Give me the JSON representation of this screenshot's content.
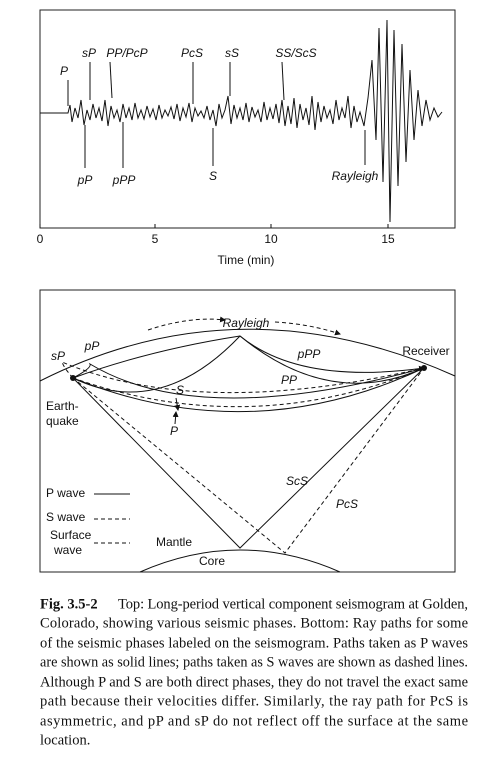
{
  "seismogram": {
    "phases_top": [
      "P",
      "sP",
      "PP/PcP",
      "PcS",
      "sS",
      "SS/ScS"
    ],
    "phases_bottom": [
      "pP",
      "pPP",
      "S",
      "Rayleigh"
    ],
    "axis": {
      "ticks": [
        0,
        5,
        10,
        15
      ],
      "label": "Time (min)"
    }
  },
  "diagram": {
    "labels": {
      "rayleigh": "Rayleigh",
      "sP": "sP",
      "pP": "pP",
      "pPP": "pPP",
      "receiver": "Receiver",
      "PP": "PP",
      "S": "S",
      "P": "P",
      "ScS": "ScS",
      "PcS": "PcS",
      "mantle": "Mantle",
      "core": "Core"
    },
    "earthquake": [
      "Earth-",
      "quake"
    ],
    "legend": {
      "p_wave": "P wave",
      "s_wave": "S wave",
      "surface_wave": [
        "Surface",
        "wave"
      ]
    }
  },
  "caption": {
    "label": "Fig. 3.5-2",
    "lines": [
      "Top: Long-period vertical component seismogram at Golden,",
      "Colorado, showing various seismic phases. Bottom: Ray paths for some",
      "of the seismic phases labeled on the seismogram. Paths taken as P waves",
      "are shown as solid lines; paths taken as S waves are shown as dashed lines.",
      "Although P and S are both direct phases, they do not travel the exact same",
      "path because their velocities differ. Similarly, the ray path for PcS is",
      "asymmetric, and pP and sP do not reflect off the surface at the same",
      "location."
    ]
  }
}
